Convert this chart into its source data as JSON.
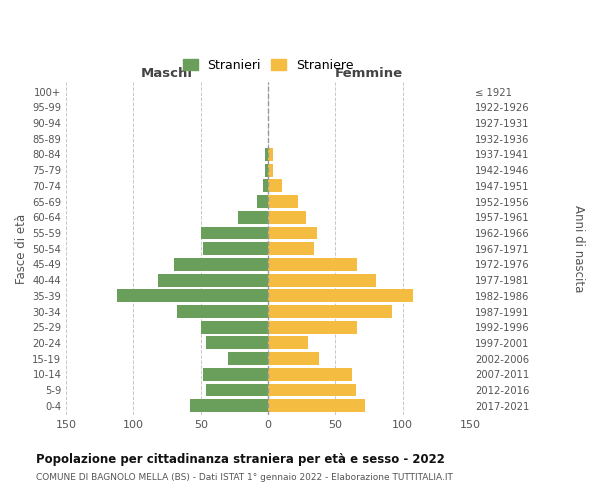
{
  "age_groups": [
    "100+",
    "95-99",
    "90-94",
    "85-89",
    "80-84",
    "75-79",
    "70-74",
    "65-69",
    "60-64",
    "55-59",
    "50-54",
    "45-49",
    "40-44",
    "35-39",
    "30-34",
    "25-29",
    "20-24",
    "15-19",
    "10-14",
    "5-9",
    "0-4"
  ],
  "birth_years": [
    "≤ 1921",
    "1922-1926",
    "1927-1931",
    "1932-1936",
    "1937-1941",
    "1942-1946",
    "1947-1951",
    "1952-1956",
    "1957-1961",
    "1962-1966",
    "1967-1971",
    "1972-1976",
    "1977-1981",
    "1982-1986",
    "1987-1991",
    "1992-1996",
    "1997-2001",
    "2002-2006",
    "2007-2011",
    "2012-2016",
    "2017-2021"
  ],
  "maschi": [
    0,
    0,
    0,
    0,
    2,
    2,
    4,
    8,
    22,
    50,
    48,
    70,
    82,
    112,
    68,
    50,
    46,
    30,
    48,
    46,
    58
  ],
  "femmine": [
    0,
    0,
    0,
    0,
    4,
    4,
    10,
    22,
    28,
    36,
    34,
    66,
    80,
    108,
    92,
    66,
    30,
    38,
    62,
    65,
    72
  ],
  "maschi_color": "#6a9e5b",
  "femmine_color": "#f5bc42",
  "background_color": "#ffffff",
  "grid_color": "#c8c8c8",
  "title": "Popolazione per cittadinanza straniera per età e sesso - 2022",
  "subtitle": "COMUNE DI BAGNOLO MELLA (BS) - Dati ISTAT 1° gennaio 2022 - Elaborazione TUTTITALIA.IT",
  "legend_maschi": "Stranieri",
  "legend_femmine": "Straniere",
  "xlabel_left": "Maschi",
  "xlabel_right": "Femmine",
  "ylabel_left": "Fasce di età",
  "ylabel_right": "Anni di nascita",
  "xlim": 150
}
